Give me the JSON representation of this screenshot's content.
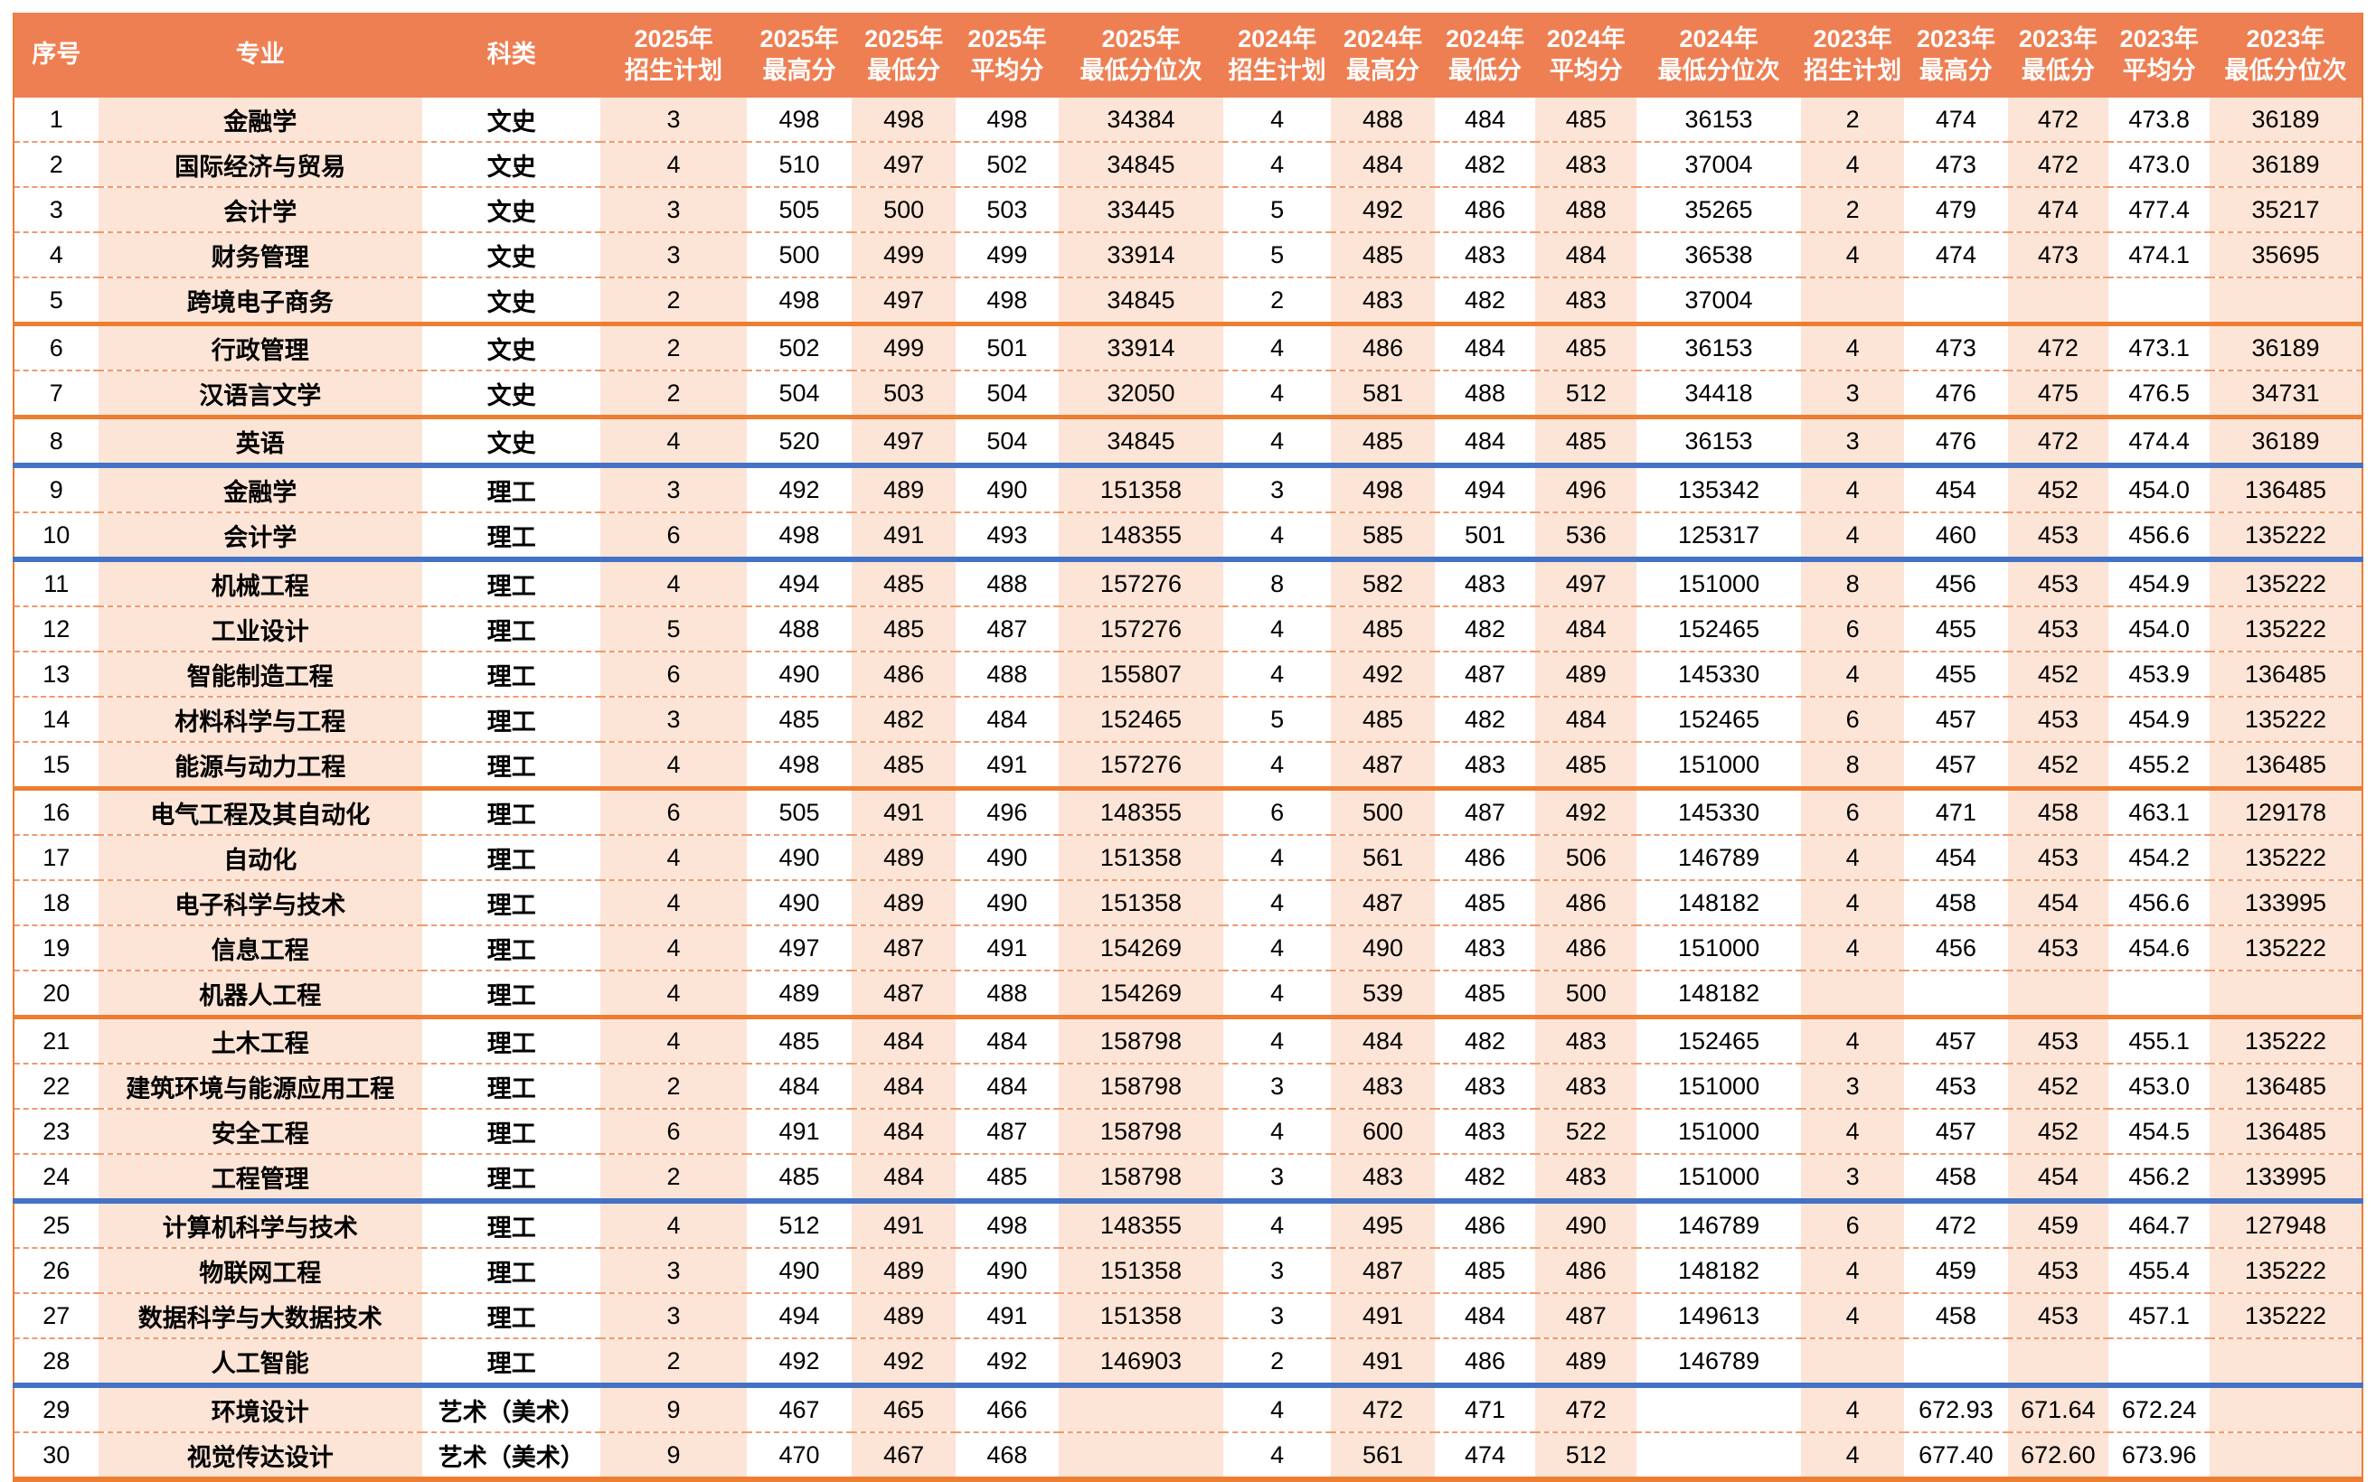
{
  "colors": {
    "header-bg": "#EE7F53",
    "header-text": "#FFFFFF",
    "peach": "#FCE4D6",
    "dashed-line": "#EF9A6B",
    "group-line": "#ED7D31",
    "blue-line": "#4472C4",
    "body-text": "#000000",
    "page-bg": "#FFFFFF"
  },
  "table": {
    "columns": [
      {
        "id": "index",
        "label": "序号"
      },
      {
        "id": "major",
        "label": "专业"
      },
      {
        "id": "category",
        "label": "科类"
      },
      {
        "id": "plan-2025",
        "label": "2025年",
        "sublabel": "招生计划"
      },
      {
        "id": "max-2025",
        "label": "2025年",
        "sublabel": "最高分"
      },
      {
        "id": "min-2025",
        "label": "2025年",
        "sublabel": "最低分"
      },
      {
        "id": "avg-2025",
        "label": "2025年",
        "sublabel": "平均分"
      },
      {
        "id": "rank-2025",
        "label": "2025年",
        "sublabel": "最低分位次"
      },
      {
        "id": "plan-2024",
        "label": "2024年",
        "sublabel": "招生计划"
      },
      {
        "id": "max-2024",
        "label": "2024年",
        "sublabel": "最高分"
      },
      {
        "id": "min-2024",
        "label": "2024年",
        "sublabel": "最低分"
      },
      {
        "id": "avg-2024",
        "label": "2024年",
        "sublabel": "平均分"
      },
      {
        "id": "rank-2024",
        "label": "2024年",
        "sublabel": "最低分位次"
      },
      {
        "id": "plan-2023",
        "label": "2023年",
        "sublabel": "招生计划"
      },
      {
        "id": "max-2023",
        "label": "2023年",
        "sublabel": "最高分"
      },
      {
        "id": "min-2023",
        "label": "2023年",
        "sublabel": "最低分"
      },
      {
        "id": "avg-2023",
        "label": "2023年",
        "sublabel": "平均分"
      },
      {
        "id": "rank-2023",
        "label": "2023年",
        "sublabel": "最低分位次"
      }
    ],
    "rows": [
      {
        "separator_after": "dashed",
        "cells": [
          "1",
          "金融学",
          "文史",
          "3",
          "498",
          "498",
          "498",
          "34384",
          "4",
          "488",
          "484",
          "485",
          "36153",
          "2",
          "474",
          "472",
          "473.8",
          "36189"
        ]
      },
      {
        "separator_after": "dashed",
        "cells": [
          "2",
          "国际经济与贸易",
          "文史",
          "4",
          "510",
          "497",
          "502",
          "34845",
          "4",
          "484",
          "482",
          "483",
          "37004",
          "4",
          "473",
          "472",
          "473.0",
          "36189"
        ]
      },
      {
        "separator_after": "dashed",
        "cells": [
          "3",
          "会计学",
          "文史",
          "3",
          "505",
          "500",
          "503",
          "33445",
          "5",
          "492",
          "486",
          "488",
          "35265",
          "2",
          "479",
          "474",
          "477.4",
          "35217"
        ]
      },
      {
        "separator_after": "dashed",
        "cells": [
          "4",
          "财务管理",
          "文史",
          "3",
          "500",
          "499",
          "499",
          "33914",
          "5",
          "485",
          "483",
          "484",
          "36538",
          "4",
          "474",
          "473",
          "474.1",
          "35695"
        ]
      },
      {
        "separator_after": "orange",
        "cells": [
          "5",
          "跨境电子商务",
          "文史",
          "2",
          "498",
          "497",
          "498",
          "34845",
          "2",
          "483",
          "482",
          "483",
          "37004",
          "",
          "",
          "",
          "",
          ""
        ]
      },
      {
        "separator_after": "dashed",
        "cells": [
          "6",
          "行政管理",
          "文史",
          "2",
          "502",
          "499",
          "501",
          "33914",
          "4",
          "486",
          "484",
          "485",
          "36153",
          "4",
          "473",
          "472",
          "473.1",
          "36189"
        ]
      },
      {
        "separator_after": "orange",
        "cells": [
          "7",
          "汉语言文学",
          "文史",
          "2",
          "504",
          "503",
          "504",
          "32050",
          "4",
          "581",
          "488",
          "512",
          "34418",
          "3",
          "476",
          "475",
          "476.5",
          "34731"
        ]
      },
      {
        "separator_after": "blue",
        "cells": [
          "8",
          "英语",
          "文史",
          "4",
          "520",
          "497",
          "504",
          "34845",
          "4",
          "485",
          "484",
          "485",
          "36153",
          "3",
          "476",
          "472",
          "474.4",
          "36189"
        ]
      },
      {
        "separator_after": "dashed",
        "cells": [
          "9",
          "金融学",
          "理工",
          "3",
          "492",
          "489",
          "490",
          "151358",
          "3",
          "498",
          "494",
          "496",
          "135342",
          "4",
          "454",
          "452",
          "454.0",
          "136485"
        ]
      },
      {
        "separator_after": "blue",
        "cells": [
          "10",
          "会计学",
          "理工",
          "6",
          "498",
          "491",
          "493",
          "148355",
          "4",
          "585",
          "501",
          "536",
          "125317",
          "4",
          "460",
          "453",
          "456.6",
          "135222"
        ]
      },
      {
        "separator_after": "dashed",
        "cells": [
          "11",
          "机械工程",
          "理工",
          "4",
          "494",
          "485",
          "488",
          "157276",
          "8",
          "582",
          "483",
          "497",
          "151000",
          "8",
          "456",
          "453",
          "454.9",
          "135222"
        ]
      },
      {
        "separator_after": "dashed",
        "cells": [
          "12",
          "工业设计",
          "理工",
          "5",
          "488",
          "485",
          "487",
          "157276",
          "4",
          "485",
          "482",
          "484",
          "152465",
          "6",
          "455",
          "453",
          "454.0",
          "135222"
        ]
      },
      {
        "separator_after": "dashed",
        "cells": [
          "13",
          "智能制造工程",
          "理工",
          "6",
          "490",
          "486",
          "488",
          "155807",
          "4",
          "492",
          "487",
          "489",
          "145330",
          "4",
          "455",
          "452",
          "453.9",
          "136485"
        ]
      },
      {
        "separator_after": "dashed",
        "cells": [
          "14",
          "材料科学与工程",
          "理工",
          "3",
          "485",
          "482",
          "484",
          "152465",
          "5",
          "485",
          "482",
          "484",
          "152465",
          "6",
          "457",
          "453",
          "454.9",
          "135222"
        ]
      },
      {
        "separator_after": "orange",
        "cells": [
          "15",
          "能源与动力工程",
          "理工",
          "4",
          "498",
          "485",
          "491",
          "157276",
          "4",
          "487",
          "483",
          "485",
          "151000",
          "8",
          "457",
          "452",
          "455.2",
          "136485"
        ]
      },
      {
        "separator_after": "dashed",
        "cells": [
          "16",
          "电气工程及其自动化",
          "理工",
          "6",
          "505",
          "491",
          "496",
          "148355",
          "6",
          "500",
          "487",
          "492",
          "145330",
          "6",
          "471",
          "458",
          "463.1",
          "129178"
        ]
      },
      {
        "separator_after": "dashed",
        "cells": [
          "17",
          "自动化",
          "理工",
          "4",
          "490",
          "489",
          "490",
          "151358",
          "4",
          "561",
          "486",
          "506",
          "146789",
          "4",
          "454",
          "453",
          "454.2",
          "135222"
        ]
      },
      {
        "separator_after": "dashed",
        "cells": [
          "18",
          "电子科学与技术",
          "理工",
          "4",
          "490",
          "489",
          "490",
          "151358",
          "4",
          "487",
          "485",
          "486",
          "148182",
          "4",
          "458",
          "454",
          "456.6",
          "133995"
        ]
      },
      {
        "separator_after": "dashed",
        "cells": [
          "19",
          "信息工程",
          "理工",
          "4",
          "497",
          "487",
          "491",
          "154269",
          "4",
          "490",
          "483",
          "486",
          "151000",
          "4",
          "456",
          "453",
          "454.6",
          "135222"
        ]
      },
      {
        "separator_after": "orange",
        "cells": [
          "20",
          "机器人工程",
          "理工",
          "4",
          "489",
          "487",
          "488",
          "154269",
          "4",
          "539",
          "485",
          "500",
          "148182",
          "",
          "",
          "",
          "",
          ""
        ]
      },
      {
        "separator_after": "dashed",
        "cells": [
          "21",
          "土木工程",
          "理工",
          "4",
          "485",
          "484",
          "484",
          "158798",
          "4",
          "484",
          "482",
          "483",
          "152465",
          "4",
          "457",
          "453",
          "455.1",
          "135222"
        ]
      },
      {
        "separator_after": "dashed",
        "cells": [
          "22",
          "建筑环境与能源应用工程",
          "理工",
          "2",
          "484",
          "484",
          "484",
          "158798",
          "3",
          "483",
          "483",
          "483",
          "151000",
          "3",
          "453",
          "452",
          "453.0",
          "136485"
        ]
      },
      {
        "separator_after": "dashed",
        "cells": [
          "23",
          "安全工程",
          "理工",
          "6",
          "491",
          "484",
          "487",
          "158798",
          "4",
          "600",
          "483",
          "522",
          "151000",
          "4",
          "457",
          "452",
          "454.5",
          "136485"
        ]
      },
      {
        "separator_after": "blue",
        "cells": [
          "24",
          "工程管理",
          "理工",
          "2",
          "485",
          "484",
          "485",
          "158798",
          "3",
          "483",
          "482",
          "483",
          "151000",
          "3",
          "458",
          "454",
          "456.2",
          "133995"
        ]
      },
      {
        "separator_after": "dashed",
        "cells": [
          "25",
          "计算机科学与技术",
          "理工",
          "4",
          "512",
          "491",
          "498",
          "148355",
          "4",
          "495",
          "486",
          "490",
          "146789",
          "6",
          "472",
          "459",
          "464.7",
          "127948"
        ]
      },
      {
        "separator_after": "dashed",
        "cells": [
          "26",
          "物联网工程",
          "理工",
          "3",
          "490",
          "489",
          "490",
          "151358",
          "3",
          "487",
          "485",
          "486",
          "148182",
          "4",
          "459",
          "453",
          "455.4",
          "135222"
        ]
      },
      {
        "separator_after": "dashed",
        "cells": [
          "27",
          "数据科学与大数据技术",
          "理工",
          "3",
          "494",
          "489",
          "491",
          "151358",
          "3",
          "491",
          "484",
          "487",
          "149613",
          "4",
          "458",
          "453",
          "457.1",
          "135222"
        ]
      },
      {
        "separator_after": "blue",
        "cells": [
          "28",
          "人工智能",
          "理工",
          "2",
          "492",
          "492",
          "492",
          "146903",
          "2",
          "491",
          "486",
          "489",
          "146789",
          "",
          "",
          "",
          "",
          ""
        ]
      },
      {
        "separator_after": "dashed",
        "cells": [
          "29",
          "环境设计",
          "艺术（美术）",
          "9",
          "467",
          "465",
          "466",
          "",
          "4",
          "472",
          "471",
          "472",
          "",
          "4",
          "672.93",
          "671.64",
          "672.24",
          ""
        ]
      },
      {
        "separator_after": "none",
        "cells": [
          "30",
          "视觉传达设计",
          "艺术（美术）",
          "9",
          "470",
          "467",
          "468",
          "",
          "4",
          "561",
          "474",
          "512",
          "",
          "4",
          "677.40",
          "672.60",
          "673.96",
          ""
        ]
      }
    ]
  }
}
